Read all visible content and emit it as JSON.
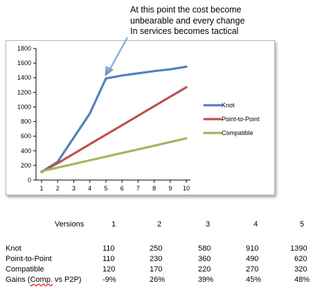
{
  "annotation": {
    "line1": "At this point the cost become",
    "line2": "unbearable and every change",
    "line3": "In services becomes tactical"
  },
  "chart_data": {
    "type": "line",
    "x": [
      1,
      2,
      3,
      4,
      5,
      6,
      7,
      8,
      9,
      10
    ],
    "ylim": [
      0,
      1800
    ],
    "yticks": [
      0,
      200,
      400,
      600,
      800,
      1000,
      1200,
      1400,
      1600,
      1800
    ],
    "grid": false,
    "legend_position": "right",
    "series": [
      {
        "name": "Knot",
        "color": "#4f81bd",
        "values": [
          110,
          250,
          580,
          910,
          1390,
          1430,
          1460,
          1490,
          1515,
          1550
        ]
      },
      {
        "name": "Point-to-Point",
        "color": "#c0504d",
        "values": [
          110,
          230,
          360,
          490,
          620,
          750,
          880,
          1010,
          1140,
          1270
        ]
      },
      {
        "name": "Compatible",
        "color": "#9bbb59",
        "values": [
          120,
          170,
          220,
          270,
          320,
          370,
          420,
          470,
          520,
          570
        ]
      }
    ]
  },
  "table": {
    "header_label": "Versions",
    "columns": [
      "1",
      "2",
      "3",
      "4",
      "5"
    ],
    "rows": [
      {
        "label": "Knot",
        "values": [
          "110",
          "250",
          "580",
          "910",
          "1390"
        ]
      },
      {
        "label": "Point-to-Point",
        "values": [
          "110",
          "230",
          "360",
          "490",
          "620"
        ]
      },
      {
        "label": "Compatible",
        "values": [
          "120",
          "170",
          "220",
          "270",
          "320"
        ]
      },
      {
        "label_pre": "Gains (",
        "label_wavy": "Comp.",
        "label_post": " vs P2P)",
        "values": [
          "-9%",
          "26%",
          "39%",
          "45%",
          "48%"
        ]
      }
    ]
  }
}
